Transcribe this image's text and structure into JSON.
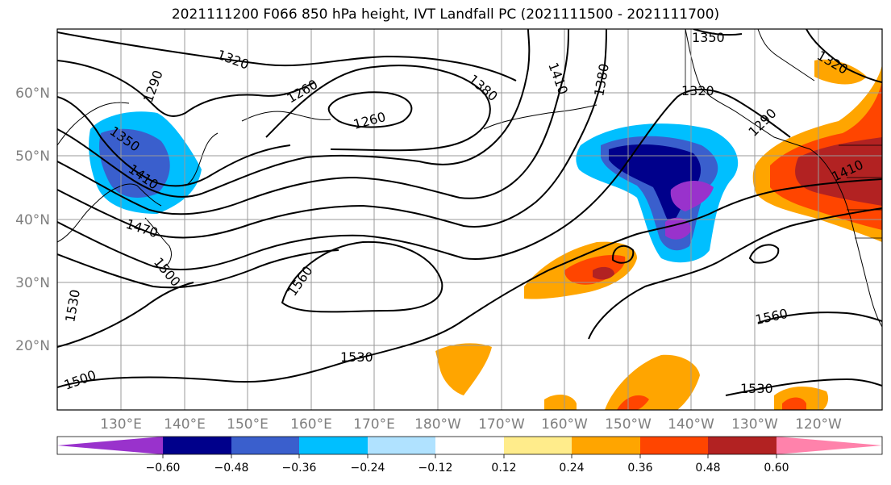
{
  "title": "2021111200 F066 850 hPa height, IVT Landfall PC (2021111500 - 2021111700)",
  "map": {
    "lat_labels": [
      "20°N",
      "30°N",
      "40°N",
      "50°N",
      "60°N"
    ],
    "lon_labels": [
      "130°E",
      "140°E",
      "150°E",
      "160°E",
      "170°E",
      "180°W",
      "170°W",
      "160°W",
      "150°W",
      "140°W",
      "130°W",
      "120°W"
    ],
    "contour_labels": [
      "1320",
      "1290",
      "1260",
      "1260",
      "1380",
      "1410",
      "1380",
      "1350",
      "1320",
      "1290",
      "1320",
      "1350",
      "1410",
      "1470",
      "1500",
      "1560",
      "1560",
      "1530",
      "1530",
      "1530",
      "1500",
      "1410"
    ]
  },
  "colorbar": {
    "tick_labels": [
      "−0.60",
      "−0.48",
      "−0.36",
      "−0.24",
      "−0.12",
      "0.12",
      "0.24",
      "0.36",
      "0.48",
      "0.60"
    ],
    "colors": [
      "#9932CC",
      "#00008B",
      "#3A5FCD",
      "#00BFFF",
      "#B0E2FF",
      "#FFFFFF",
      "#FFEC8B",
      "#FFA500",
      "#FF4500",
      "#B22222",
      "#FF82AB"
    ]
  }
}
